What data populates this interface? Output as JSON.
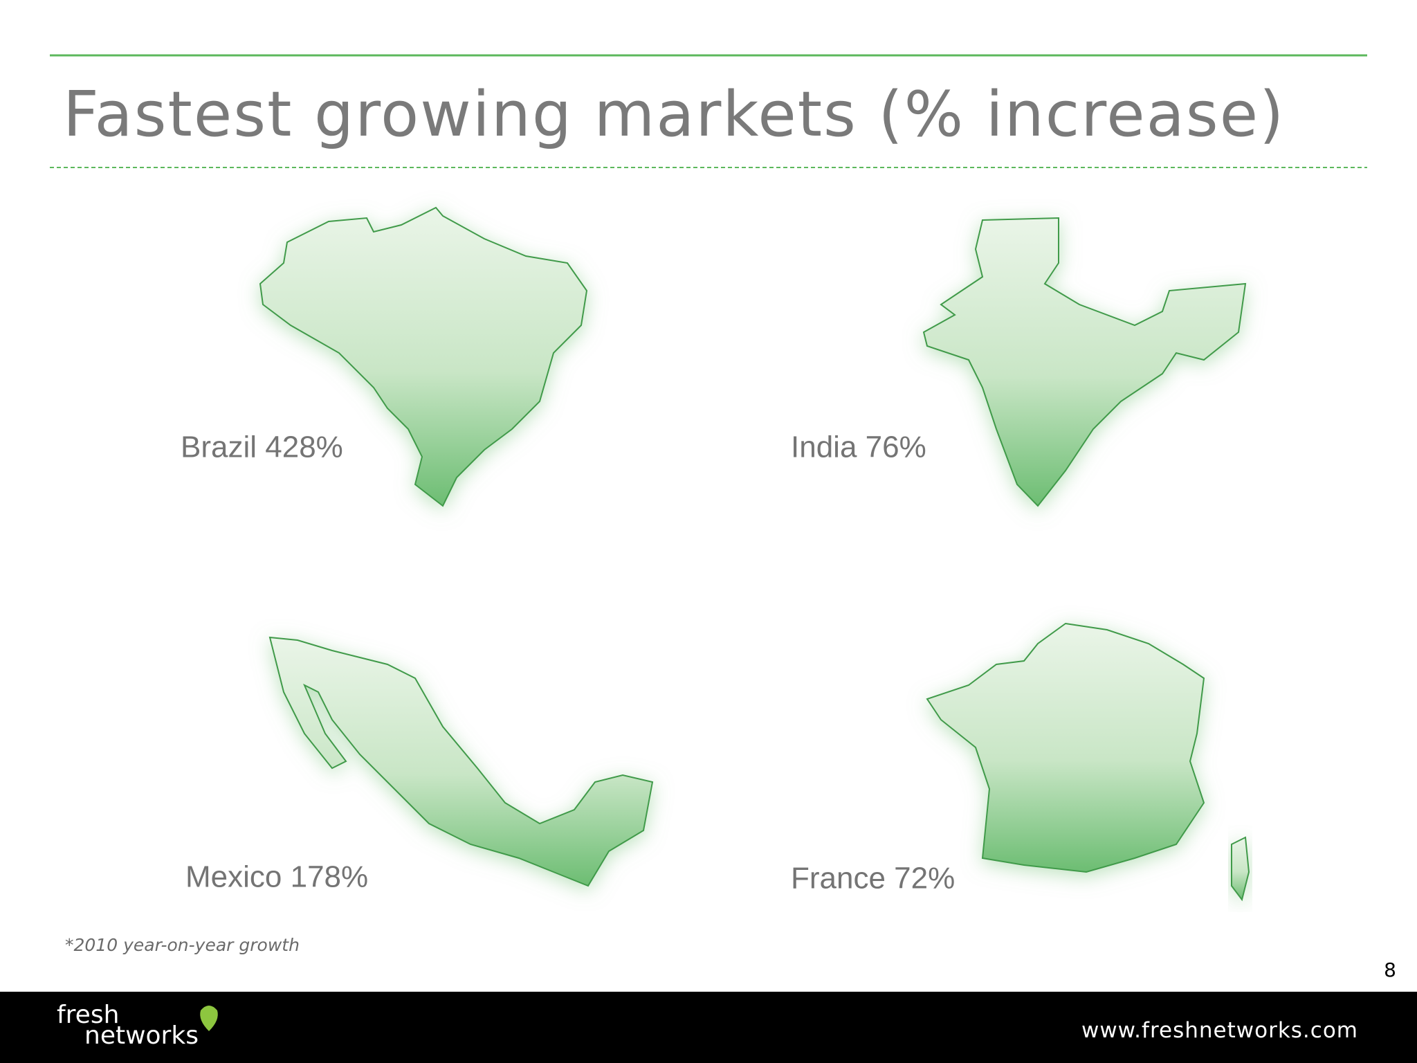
{
  "header": {
    "title": "Fastest growing markets (% increase)"
  },
  "markets": [
    {
      "label": "Brazil 428%"
    },
    {
      "label": "India 76%"
    },
    {
      "label": "Mexico 178%"
    },
    {
      "label": "France 72%"
    }
  ],
  "footnote": "*2010 year-on-year growth",
  "page_number": "8",
  "footer": {
    "logo_top": "fresh",
    "logo_bottom": "networks",
    "url": "www.freshnetworks.com"
  }
}
